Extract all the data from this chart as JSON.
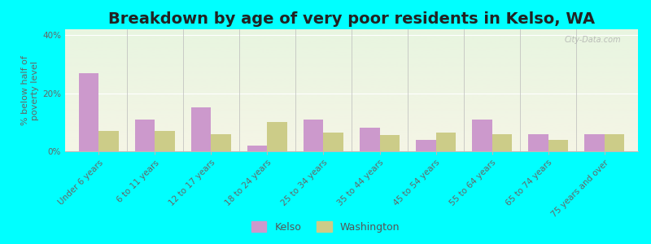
{
  "title": "Breakdown by age of very poor residents in Kelso, WA",
  "ylabel": "% below half of\npoverty level",
  "categories": [
    "Under 6 years",
    "6 to 11 years",
    "12 to 17 years",
    "18 to 24 years",
    "25 to 34 years",
    "35 to 44 years",
    "45 to 54 years",
    "55 to 64 years",
    "65 to 74 years",
    "75 years and over"
  ],
  "kelso_values": [
    27,
    11,
    15,
    2,
    11,
    8,
    4,
    11,
    6,
    6
  ],
  "washington_values": [
    7,
    7,
    6,
    10,
    6.5,
    5.5,
    6.5,
    6,
    4,
    6
  ],
  "kelso_color": "#cc99cc",
  "washington_color": "#cccc88",
  "bg_color": "#00ffff",
  "plot_bg_top": "#e8f4e0",
  "plot_bg_bottom": "#f0f0e0",
  "ylim": [
    0,
    42
  ],
  "yticks": [
    0,
    20,
    40
  ],
  "ytick_labels": [
    "0%",
    "20%",
    "40%"
  ],
  "bar_width": 0.35,
  "legend_labels": [
    "Kelso",
    "Washington"
  ],
  "title_fontsize": 14,
  "axis_label_fontsize": 8,
  "tick_fontsize": 7.5,
  "watermark": "City-Data.com"
}
